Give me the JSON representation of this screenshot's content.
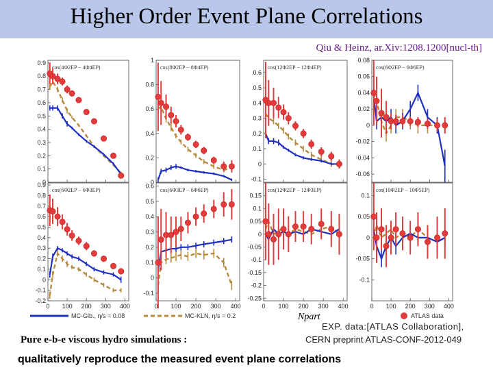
{
  "title": "Higher Order Event Plane Correlations",
  "reference": "Qiu & Heinz, ar.Xiv:1208.1200[nucl-th]",
  "exp_line1": "EXP. data:[ATLAS Collaboration],",
  "exp_line2": "CERN preprint ATLAS-CONF-2012-049",
  "pure_label": "Pure e-b-e viscous hydro simulations :",
  "conclusion": "qualitatively reproduce the measured event plane correlations",
  "colors": {
    "title_bar": "#b9c7ea",
    "glb": "#1f2fbf",
    "kln": "#b88a3e",
    "atlas": "#e23b3b"
  },
  "chart_data": {
    "type": "line",
    "xlabel": "Npart",
    "x_ticks": [
      "0",
      "100",
      "200",
      "300",
      "400"
    ],
    "legend": {
      "glb": "MC-Glb., η/s = 0.08",
      "kln": "MC-KLN, η/s = 0.2",
      "atlas": "ATLAS data"
    },
    "panels": [
      {
        "label": "cos(4Φ2EP − 4Φ4EP)",
        "ylim": [
          0,
          0.92
        ],
        "y_ticks": [
          "0",
          "0.1",
          "0.2",
          "0.3",
          "0.4",
          "0.5",
          "0.6",
          "0.7",
          "0.8",
          "0.9"
        ],
        "x": [
          10,
          25,
          50,
          75,
          100,
          125,
          160,
          200,
          240,
          290,
          340,
          380
        ],
        "atlas": [
          0.82,
          0.8,
          0.78,
          0.76,
          0.7,
          0.67,
          0.62,
          0.53,
          0.46,
          0.33,
          0.2,
          0.05
        ],
        "atlas_err": [
          0.08,
          0.06,
          0.04,
          0.03,
          0.03,
          0.02,
          0.02,
          0.02,
          0.02,
          0.02,
          0.02,
          0.02
        ],
        "glb": [
          0.56,
          0.56,
          0.56,
          0.5,
          0.44,
          0.41,
          0.36,
          0.31,
          0.27,
          0.21,
          0.14,
          0.06
        ],
        "glb_err": [
          0.02,
          0.02,
          0.02,
          0.02,
          0.02,
          0.01,
          0.01,
          0.01,
          0.01,
          0.01,
          0.01,
          0.01
        ],
        "kln": [
          0.72,
          0.76,
          0.7,
          0.62,
          0.54,
          0.49,
          0.43,
          0.35,
          0.27,
          0.2,
          0.13,
          0.07
        ],
        "kln_err": [
          0.02,
          0.02,
          0.02,
          0.02,
          0.02,
          0.01,
          0.01,
          0.01,
          0.01,
          0.01,
          0.01,
          0.01
        ]
      },
      {
        "label": "cos(8Φ2EP − 8Φ4EP)",
        "ylim": [
          0,
          1
        ],
        "y_ticks": [
          "0",
          "0.2",
          "0.4",
          "0.6",
          "0.8",
          "1"
        ],
        "x": [
          10,
          25,
          50,
          75,
          100,
          125,
          160,
          200,
          240,
          290,
          340,
          380
        ],
        "atlas": [
          0.7,
          0.65,
          0.62,
          0.55,
          0.5,
          0.43,
          0.37,
          0.31,
          0.26,
          0.18,
          0.13,
          0.13
        ],
        "atlas_err": [
          0.28,
          0.18,
          0.1,
          0.07,
          0.05,
          0.04,
          0.03,
          0.03,
          0.03,
          0.03,
          0.04,
          0.05
        ],
        "glb": [
          0.02,
          0.09,
          0.1,
          0.12,
          0.13,
          0.12,
          0.1,
          0.09,
          0.08,
          0.07,
          0.05,
          0.02
        ],
        "glb_err": [
          0.02,
          0.02,
          0.02,
          0.02,
          0.02,
          0.01,
          0.01,
          0.01,
          0.01,
          0.01,
          0.01,
          0.01
        ],
        "kln": [
          0.6,
          0.62,
          0.52,
          0.45,
          0.38,
          0.33,
          0.27,
          0.22,
          0.17,
          0.13,
          0.1,
          0.12
        ],
        "kln_err": [
          0.04,
          0.04,
          0.03,
          0.03,
          0.02,
          0.02,
          0.02,
          0.02,
          0.02,
          0.02,
          0.02,
          0.02
        ]
      },
      {
        "label": "cos(12Φ2EP − 12Φ4EP)",
        "ylim": [
          -0.12,
          0.68
        ],
        "y_ticks": [
          "-0.1",
          "0",
          "0.1",
          "0.2",
          "0.3",
          "0.4",
          "0.5",
          "0.6"
        ],
        "x": [
          10,
          25,
          50,
          75,
          100,
          125,
          160,
          200,
          240,
          290,
          340,
          380
        ],
        "atlas": [
          0.42,
          0.4,
          0.4,
          0.37,
          0.34,
          0.3,
          0.25,
          0.2,
          0.13,
          0.08,
          0.05,
          0.0
        ],
        "atlas_err": [
          0.25,
          0.15,
          0.1,
          0.07,
          0.05,
          0.04,
          0.03,
          0.03,
          0.03,
          0.03,
          0.03,
          0.03
        ],
        "glb": [
          0.2,
          0.15,
          0.15,
          0.14,
          0.11,
          0.09,
          0.06,
          0.04,
          0.03,
          0.02,
          0.0,
          0.0
        ],
        "glb_err": [
          0.02,
          0.02,
          0.02,
          0.02,
          0.01,
          0.01,
          0.01,
          0.01,
          0.01,
          0.01,
          0.01,
          0.01
        ],
        "kln": [
          0.33,
          0.3,
          0.28,
          0.25,
          0.22,
          0.18,
          0.14,
          0.1,
          0.06,
          0.03,
          0.0,
          -0.01
        ],
        "kln_err": [
          0.03,
          0.03,
          0.02,
          0.02,
          0.02,
          0.02,
          0.02,
          0.02,
          0.02,
          0.02,
          0.02,
          0.02
        ]
      },
      {
        "label": "cos(6Φ2EP − 6Φ6EP)",
        "ylim": [
          -0.07,
          0.08
        ],
        "y_ticks": [
          "-0.06",
          "-0.04",
          "-0.02",
          "0",
          "0.02",
          "0.04",
          "0.06",
          "0.08"
        ],
        "x": [
          10,
          25,
          50,
          75,
          100,
          125,
          160,
          200,
          240,
          290,
          340,
          380
        ],
        "atlas": [
          0.04,
          0.03,
          0.015,
          0.01,
          0.005,
          0.005,
          0.005,
          0.005,
          0.004,
          0.002,
          0.0,
          0.0
        ],
        "atlas_err": [
          0.04,
          0.03,
          0.03,
          0.02,
          0.01,
          0.008,
          0.008,
          0.006,
          0.006,
          0.006,
          0.008,
          0.01
        ],
        "glb": [
          0.035,
          0.005,
          0.01,
          0.005,
          0.01,
          0.0,
          0.005,
          0.02,
          0.04,
          0.01,
          0.0,
          -0.05
        ],
        "glb_err": [
          0.01,
          0.01,
          0.01,
          0.01,
          0.01,
          0.01,
          0.01,
          0.01,
          0.01,
          0.01,
          0.01,
          0.02
        ],
        "kln": [
          0.04,
          0.03,
          0.005,
          -0.01,
          0.0,
          0.01,
          0.01,
          0.005,
          0.0,
          0.0,
          0.0,
          0.0
        ],
        "kln_err": [
          0.01,
          0.01,
          0.01,
          0.01,
          0.01,
          0.01,
          0.01,
          0.01,
          0.01,
          0.01,
          0.01,
          0.01
        ]
      },
      {
        "label": "cos(6Φ2EP − 6Φ3EP)",
        "ylim": [
          -0.2,
          0.92
        ],
        "y_ticks": [
          "-0.2",
          "-0.1",
          "0",
          "0.1",
          "0.2",
          "0.3",
          "0.4",
          "0.5",
          "0.6",
          "0.7",
          "0.8",
          "0.9"
        ],
        "x": [
          10,
          25,
          50,
          75,
          100,
          125,
          160,
          200,
          240,
          290,
          340,
          380
        ],
        "atlas": [
          0.66,
          0.65,
          0.6,
          0.55,
          0.48,
          0.42,
          0.37,
          0.32,
          0.25,
          0.2,
          0.13,
          0.08
        ],
        "atlas_err": [
          0.15,
          0.12,
          0.09,
          0.07,
          0.06,
          0.05,
          0.04,
          0.04,
          0.03,
          0.03,
          0.03,
          0.03
        ],
        "glb": [
          0.05,
          0.22,
          0.3,
          0.28,
          0.25,
          0.22,
          0.2,
          0.15,
          0.1,
          0.07,
          0.05,
          0.0
        ],
        "glb_err": [
          0.03,
          0.03,
          0.02,
          0.02,
          0.02,
          0.02,
          0.02,
          0.02,
          0.02,
          0.02,
          0.02,
          0.03
        ],
        "kln": [
          -0.15,
          0.05,
          0.25,
          0.2,
          0.15,
          0.12,
          0.1,
          0.05,
          0.0,
          -0.05,
          -0.1,
          -0.1
        ],
        "kln_err": [
          0.03,
          0.03,
          0.03,
          0.03,
          0.03,
          0.02,
          0.02,
          0.02,
          0.02,
          0.02,
          0.02,
          0.02
        ]
      },
      {
        "label": "cos(6Φ3EP − 6Φ6EP)",
        "ylim": [
          -0.15,
          0.62
        ],
        "y_ticks": [
          "-0.1",
          "0",
          "0.1",
          "0.2",
          "0.3",
          "0.4",
          "0.5",
          "0.6"
        ],
        "x": [
          10,
          25,
          50,
          75,
          100,
          125,
          160,
          200,
          240,
          290,
          340,
          380
        ],
        "atlas": [
          0.1,
          0.25,
          0.28,
          0.28,
          0.3,
          0.32,
          0.36,
          0.4,
          0.42,
          0.45,
          0.48,
          0.48
        ],
        "atlas_err": [
          0.3,
          0.2,
          0.15,
          0.12,
          0.1,
          0.08,
          0.07,
          0.06,
          0.06,
          0.06,
          0.08,
          0.1
        ],
        "glb": [
          0.05,
          0.17,
          0.18,
          0.19,
          0.19,
          0.2,
          0.2,
          0.21,
          0.22,
          0.23,
          0.24,
          0.25
        ],
        "glb_err": [
          0.03,
          0.02,
          0.02,
          0.02,
          0.02,
          0.02,
          0.02,
          0.02,
          0.02,
          0.02,
          0.02,
          0.02
        ],
        "kln": [
          -0.05,
          0.1,
          0.12,
          0.13,
          0.14,
          0.15,
          0.14,
          0.16,
          0.15,
          0.16,
          0.1,
          -0.05
        ],
        "kln_err": [
          0.03,
          0.03,
          0.03,
          0.03,
          0.03,
          0.03,
          0.03,
          0.03,
          0.03,
          0.03,
          0.03,
          0.03
        ]
      },
      {
        "label": "cos(12Φ2EP − 12Φ3EP)",
        "ylim": [
          -0.26,
          0.2
        ],
        "y_ticks": [
          "-0.25",
          "-0.2",
          "-0.15",
          "-0.1",
          "-0.05",
          "0",
          "0.05",
          "0.1",
          "0.15"
        ],
        "x": [
          10,
          25,
          50,
          75,
          100,
          125,
          160,
          200,
          240,
          290,
          340,
          380
        ],
        "atlas": [
          0.05,
          0.0,
          -0.02,
          0.0,
          0.02,
          0.0,
          0.03,
          0.03,
          0.02,
          0.04,
          0.02,
          0.0
        ],
        "atlas_err": [
          0.15,
          0.12,
          0.1,
          0.1,
          0.08,
          0.07,
          0.06,
          0.06,
          0.06,
          0.06,
          0.07,
          0.08
        ],
        "glb": [
          0.0,
          -0.02,
          0.02,
          0.0,
          0.01,
          0.0,
          0.01,
          0.0,
          0.02,
          0.01,
          0.0,
          0.02
        ],
        "glb_err": [
          0.02,
          0.02,
          0.02,
          0.02,
          0.02,
          0.02,
          0.02,
          0.02,
          0.02,
          0.02,
          0.02,
          0.02
        ],
        "kln": [
          0.02,
          0.05,
          0.0,
          0.01,
          0.03,
          0.0,
          0.02,
          0.01,
          0.0,
          0.02,
          0.03,
          0.0
        ],
        "kln_err": [
          0.02,
          0.02,
          0.02,
          0.02,
          0.02,
          0.02,
          0.02,
          0.02,
          0.02,
          0.02,
          0.02,
          0.02
        ]
      },
      {
        "label": "cos(10Φ2EP − 10Φ5EP)",
        "ylim": [
          -0.15,
          0.13
        ],
        "y_ticks": [
          "-0.1",
          "-0.05",
          "0",
          "0.05",
          "0.1"
        ],
        "x": [
          10,
          25,
          50,
          75,
          100,
          125,
          160,
          200,
          240,
          290,
          340,
          380
        ],
        "atlas": [
          0.05,
          0.0,
          0.02,
          -0.02,
          0.0,
          0.02,
          0.01,
          0.0,
          0.02,
          -0.01,
          0.0,
          0.01
        ],
        "atlas_err": [
          0.08,
          0.06,
          0.05,
          0.05,
          0.04,
          0.04,
          0.04,
          0.04,
          0.04,
          0.04,
          0.05,
          0.06
        ],
        "glb": [
          0.02,
          -0.02,
          -0.05,
          -0.02,
          0.0,
          -0.02,
          0.0,
          0.01,
          0.0,
          0.0,
          -0.01,
          0.0
        ],
        "glb_err": [
          0.02,
          0.02,
          0.02,
          0.02,
          0.02,
          0.02,
          0.02,
          0.02,
          0.02,
          0.02,
          0.02,
          0.02
        ],
        "kln": [
          0.0,
          0.03,
          0.0,
          0.01,
          0.02,
          0.0,
          0.01,
          0.0,
          0.02,
          0.0,
          -0.01,
          0.0
        ],
        "kln_err": [
          0.02,
          0.02,
          0.02,
          0.02,
          0.02,
          0.02,
          0.02,
          0.02,
          0.02,
          0.02,
          0.02,
          0.02
        ]
      }
    ]
  }
}
